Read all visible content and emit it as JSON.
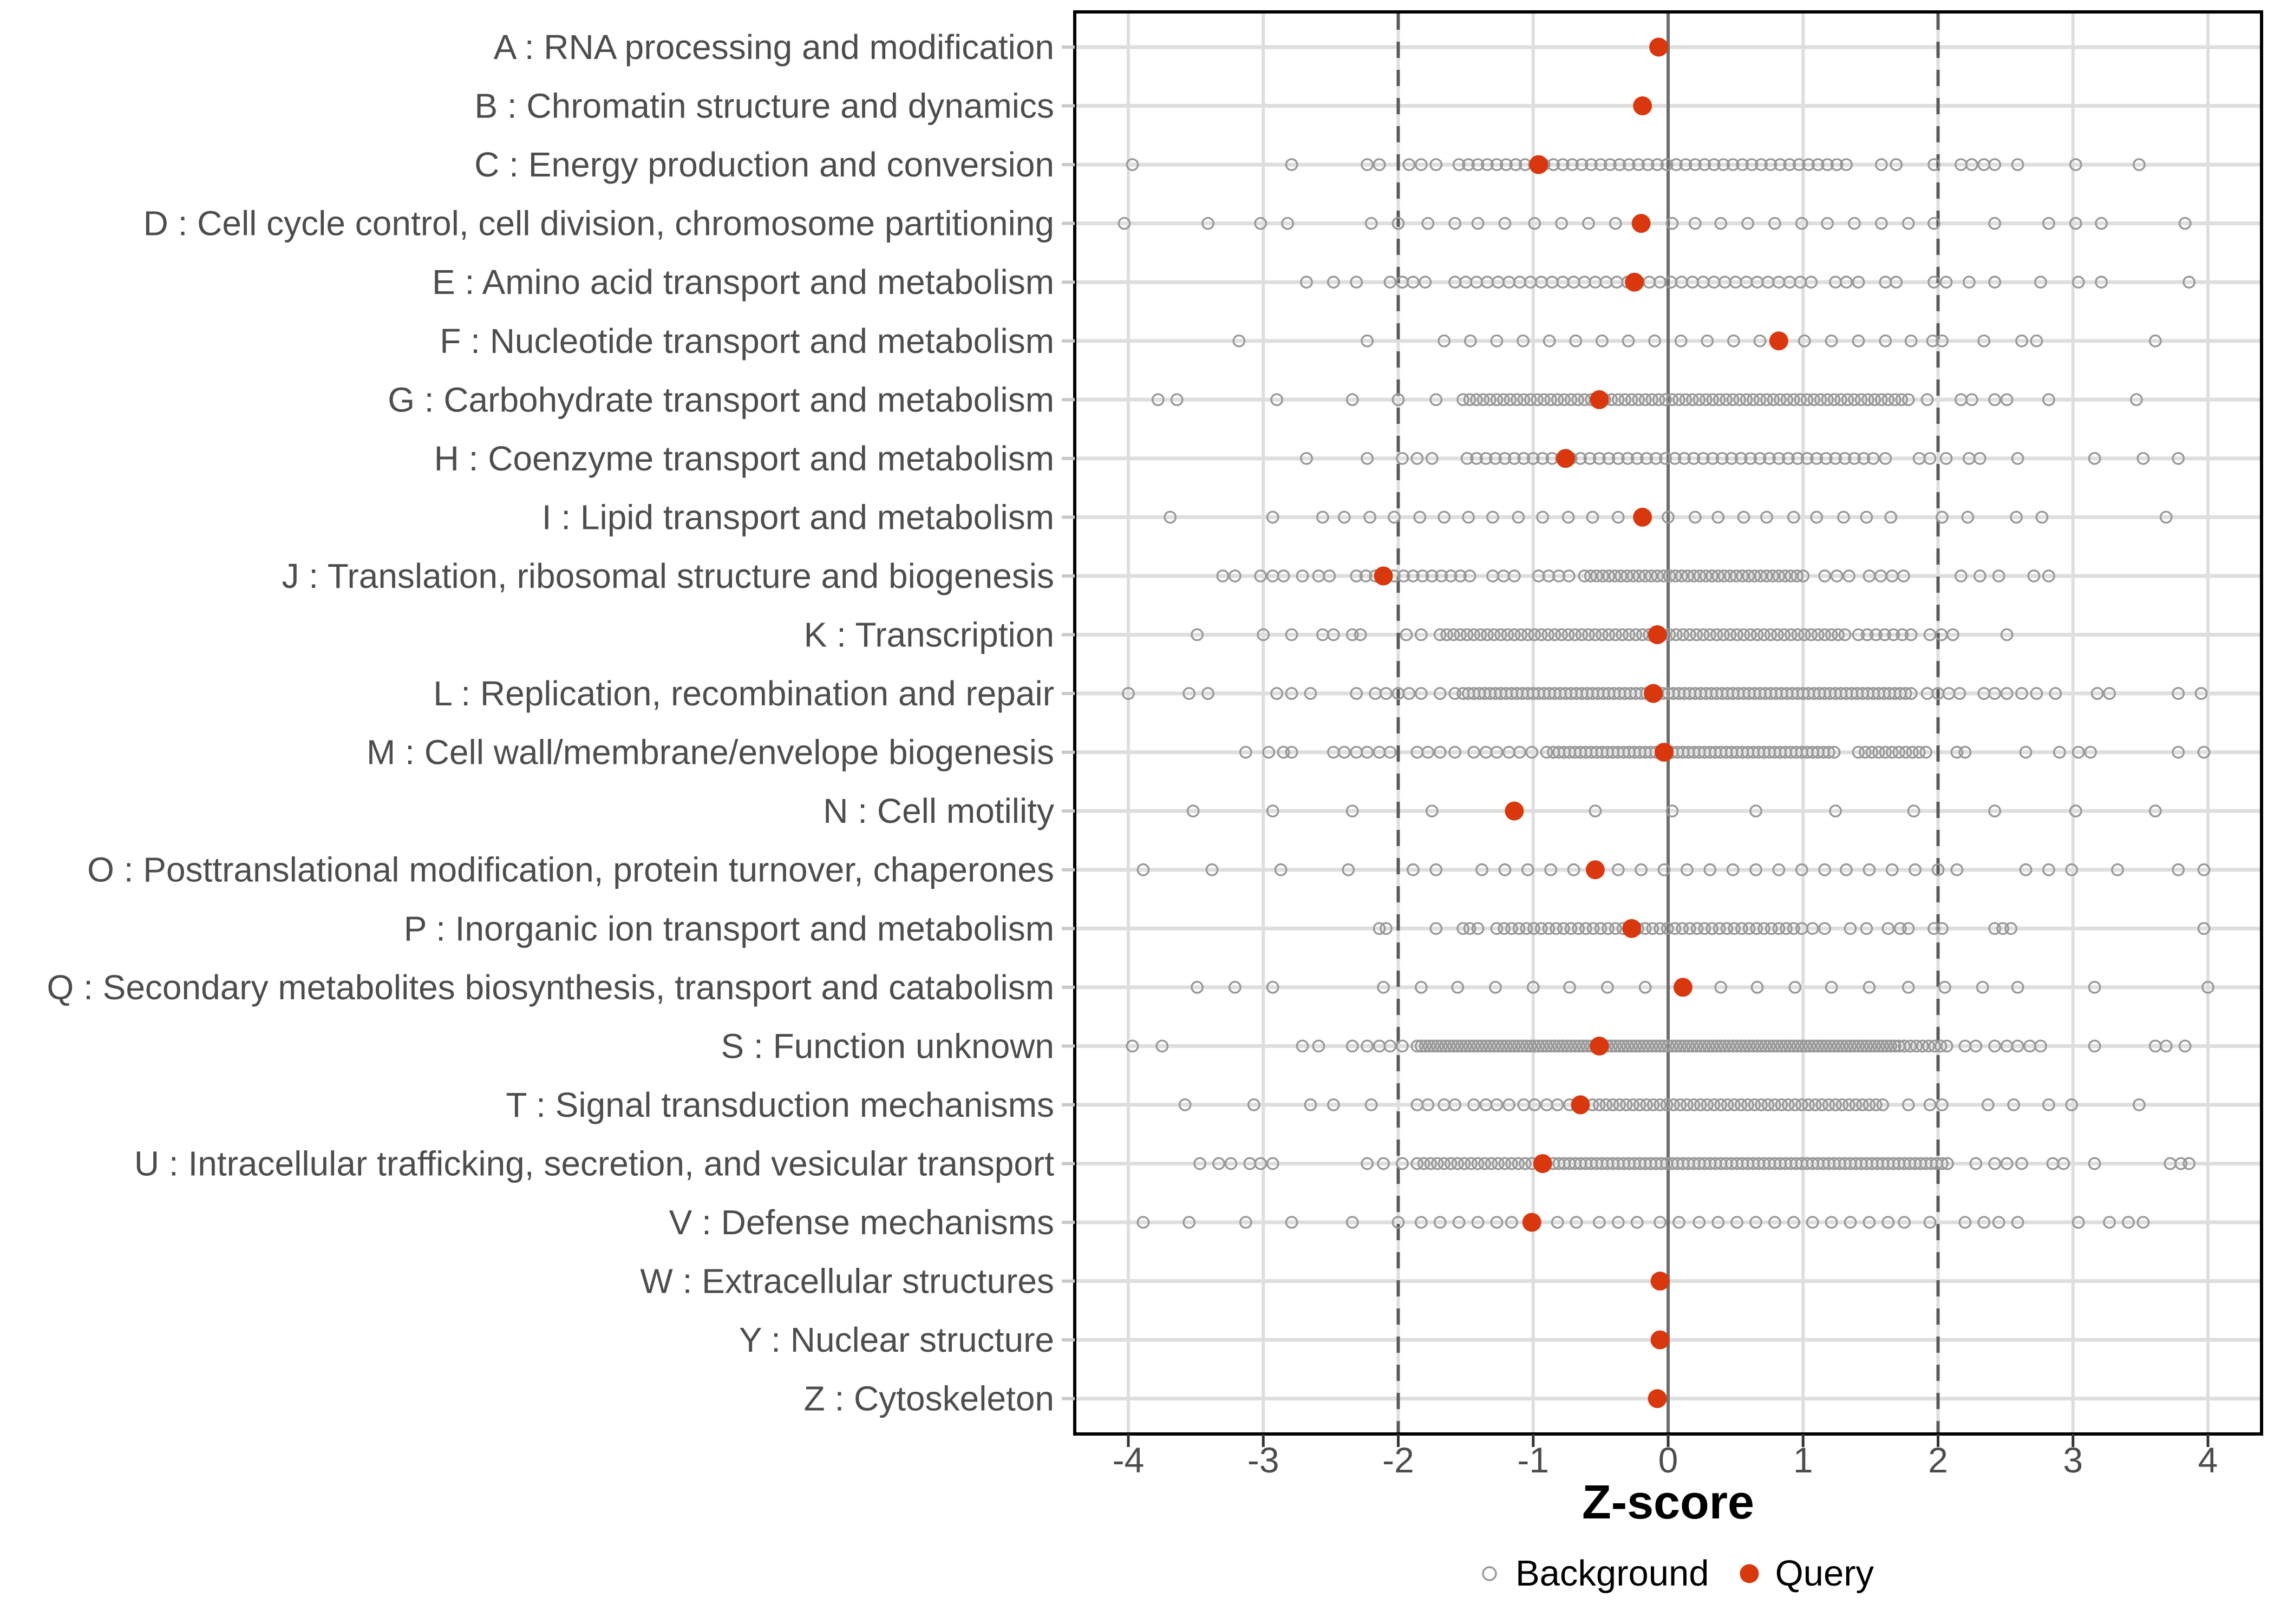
{
  "chart_data": {
    "type": "scatter",
    "variant": "strip-plot",
    "xlabel": "Z-score",
    "x_ticks": [
      "-4",
      "-3",
      "-2",
      "-1",
      "0",
      "1",
      "2",
      "3",
      "4"
    ],
    "x_tick_values": [
      -4,
      -3,
      -2,
      -1,
      0,
      1,
      2,
      3,
      4
    ],
    "x_range": [
      -4.4,
      4.4
    ],
    "grid": true,
    "reference_lines": {
      "solid_at": 0,
      "dashed_at": [
        -2,
        2
      ]
    },
    "legend_position": "bottom",
    "legend": [
      {
        "label": "Background",
        "symbol": "open-circle",
        "color": "#999999"
      },
      {
        "label": "Query",
        "symbol": "filled-circle",
        "color": "#D9380F"
      }
    ],
    "colors": {
      "query_fill": "#D9380F",
      "background_stroke": "#999999",
      "grid_line": "#DEDEDE",
      "reference_dashed": "#5A5A5A",
      "reference_solid": "#6E6E6E",
      "panel_border": "#000000",
      "axis_text": "#4D4D4D",
      "x_tick_mark": "#333333",
      "y_tick_mark": "#C9C9C9"
    },
    "categories": [
      {
        "label": "A : RNA processing and modification",
        "query": -0.07,
        "bg_points": [],
        "bg_bands": []
      },
      {
        "label": "B : Chromatin structure and dynamics",
        "query": -0.19,
        "bg_points": [],
        "bg_bands": []
      },
      {
        "label": "C : Energy production and conversion",
        "query": -0.96,
        "bg_points": [
          -3.97,
          -2.79,
          -2.23,
          -2.14,
          -1.92,
          -1.83,
          -1.72,
          1.58,
          1.69,
          1.97,
          2.17,
          2.25,
          2.34,
          2.42,
          2.59,
          3.02,
          3.49
        ],
        "bg_bands": [
          [
            -1.55,
            1.32,
            0.07
          ]
        ]
      },
      {
        "label": "D : Cell cycle control, cell division, chromosome partitioning",
        "query": -0.2,
        "bg_points": [
          -4.03,
          -3.41,
          -3.02,
          -2.82,
          -2.2,
          -2.0,
          -1.78,
          -1.58,
          -1.41,
          -1.21,
          -0.99,
          -0.79,
          -0.59,
          -0.39,
          0.03,
          0.2,
          0.39,
          0.59,
          0.79,
          0.99,
          1.18,
          1.38,
          1.58,
          1.78,
          1.97,
          2.42,
          2.82,
          3.02,
          3.21,
          3.83
        ],
        "bg_bands": []
      },
      {
        "label": "E : Amino acid transport and metabolism",
        "query": -0.25,
        "bg_points": [
          -2.68,
          -2.48,
          -2.31,
          -2.06,
          -1.97,
          -1.89,
          -1.8,
          1.24,
          1.32,
          1.41,
          1.61,
          1.69,
          1.97,
          2.06,
          2.23,
          2.42,
          2.76,
          3.04,
          3.21,
          3.86
        ],
        "bg_bands": [
          [
            -1.58,
            1.1,
            0.08
          ]
        ]
      },
      {
        "label": "F : Nucleotide transport and metabolism",
        "query": 0.82,
        "bg_points": [
          -3.18,
          -2.23,
          1.01,
          1.21,
          1.41,
          1.61,
          1.8,
          1.96,
          2.03,
          2.34,
          2.62,
          2.73,
          3.61
        ],
        "bg_bands": [
          [
            -1.66,
            0.7,
            0.195
          ]
        ]
      },
      {
        "label": "G : Carbohydrate transport and metabolism",
        "query": -0.51,
        "bg_points": [
          -3.78,
          -3.64,
          -2.9,
          -2.34,
          -2.0,
          -1.72,
          1.92,
          2.17,
          2.25,
          2.42,
          2.51,
          2.82,
          3.47
        ],
        "bg_bands": [
          [
            -1.52,
            1.78,
            0.05
          ]
        ]
      },
      {
        "label": "H : Coenzyme transport and metabolism",
        "query": -0.76,
        "bg_points": [
          -2.68,
          -2.23,
          -1.97,
          -1.86,
          -1.75,
          1.52,
          1.61,
          1.86,
          1.94,
          2.06,
          2.23,
          2.31,
          2.59,
          3.16,
          3.52,
          3.78
        ],
        "bg_bands": [
          [
            -1.49,
            1.47,
            0.07
          ]
        ]
      },
      {
        "label": "I : Lipid transport and metabolism",
        "query": -0.19,
        "bg_points": [
          -3.69,
          -2.93,
          -2.56,
          -2.4,
          -2.21,
          -2.03,
          -1.84,
          -1.66,
          -1.48,
          -1.3,
          -1.11,
          -0.93,
          -0.74,
          -0.56,
          -0.37,
          0.0,
          0.2,
          0.37,
          0.56,
          0.73,
          0.93,
          1.1,
          1.3,
          1.47,
          1.65,
          2.03,
          2.22,
          2.58,
          2.77,
          3.69
        ],
        "bg_bands": []
      },
      {
        "label": "J : Translation, ribosomal structure and biogenesis",
        "query": -2.11,
        "bg_points": [
          -3.3,
          -3.21,
          -3.02,
          -2.93,
          -2.85,
          -2.71,
          -2.59,
          -2.51,
          -2.31,
          -2.24,
          -2.17,
          2.17,
          2.31,
          2.45,
          2.71,
          2.82
        ],
        "bg_bands": [
          [
            -2.03,
            -1.41,
            0.07
          ],
          [
            -1.3,
            -1.13,
            0.08
          ],
          [
            -0.96,
            -0.73,
            0.075
          ],
          [
            -0.62,
            1.01,
            0.045
          ],
          [
            1.16,
            1.35,
            0.09
          ],
          [
            1.49,
            1.75,
            0.085
          ]
        ]
      },
      {
        "label": "K : Transcription",
        "query": -0.08,
        "bg_points": [
          -3.49,
          -3.0,
          -2.79,
          -2.56,
          -2.48,
          -2.34,
          -2.28,
          -1.94,
          -1.83,
          2.51
        ],
        "bg_bands": [
          [
            -1.69,
            1.35,
            0.05
          ],
          [
            1.41,
            1.86,
            0.065
          ],
          [
            1.94,
            2.11,
            0.085
          ]
        ]
      },
      {
        "label": "L : Replication, recombination and repair",
        "query": -0.11,
        "bg_points": [
          -4.0,
          -3.55,
          -3.41,
          -2.9,
          -2.79,
          -2.65,
          -2.31,
          -2.17,
          -2.09,
          -2.0,
          -1.92,
          -1.83,
          -1.69,
          -1.58,
          2.34,
          2.42,
          2.51,
          2.62,
          2.73,
          2.87,
          3.18,
          3.27,
          3.78,
          3.95
        ],
        "bg_bands": [
          [
            -1.52,
            1.8,
            0.04
          ],
          [
            1.92,
            2.17,
            0.08
          ]
        ]
      },
      {
        "label": "M : Cell wall/membrane/envelope biogenesis",
        "query": -0.03,
        "bg_points": [
          -3.13,
          -2.96,
          -2.85,
          -2.79,
          -2.48,
          -2.4,
          -2.31,
          -2.23,
          -2.14,
          -2.06,
          -1.86,
          -1.78,
          -1.69,
          -1.58,
          -1.44,
          -1.35,
          -1.27,
          -1.18,
          -1.1,
          -1.01,
          -0.9,
          2.14,
          2.2,
          2.65,
          2.9,
          3.04,
          3.13,
          3.78,
          3.97
        ],
        "bg_bands": [
          [
            -0.85,
            1.24,
            0.04
          ],
          [
            1.41,
            1.92,
            0.05
          ]
        ]
      },
      {
        "label": "N : Cell motility",
        "query": -1.14,
        "bg_points": [
          -3.52,
          -2.93,
          -2.34,
          -1.75,
          -0.54,
          0.03,
          0.65,
          1.24,
          1.82,
          2.42,
          3.02,
          3.61
        ],
        "bg_bands": []
      },
      {
        "label": "O : Posttranslational modification, protein turnover, chaperones",
        "query": -0.54,
        "bg_points": [
          -3.89,
          -3.38,
          -2.87,
          -2.37,
          -1.89,
          -1.72,
          -1.38,
          -1.21,
          -1.04,
          -0.87,
          -0.7,
          -0.37,
          -0.2,
          -0.03,
          0.14,
          0.31,
          0.48,
          0.65,
          0.82,
          0.99,
          1.16,
          1.32,
          1.49,
          1.66,
          1.83,
          2.0,
          2.14,
          2.65,
          2.82,
          2.99,
          3.33,
          3.78,
          3.97
        ],
        "bg_bands": []
      },
      {
        "label": "P : Inorganic ion transport and metabolism",
        "query": -0.27,
        "bg_points": [
          -2.14,
          -2.09,
          -1.72,
          -1.52,
          -1.47,
          -1.41,
          0.99,
          1.07,
          1.16,
          1.35,
          1.47,
          1.63,
          1.72,
          1.78,
          1.97,
          2.03,
          2.42,
          2.48,
          2.54,
          3.97
        ],
        "bg_bands": [
          [
            -1.27,
            0.93,
            0.055
          ]
        ]
      },
      {
        "label": "Q : Secondary metabolites biosynthesis, transport and catabolism",
        "query": 0.11,
        "bg_points": [
          -3.49,
          -3.21,
          -2.93,
          -2.11,
          -1.83,
          -1.56,
          -1.28,
          -1.0,
          -0.73,
          -0.45,
          -0.17,
          0.39,
          0.66,
          0.94,
          1.21,
          1.49,
          1.78,
          2.05,
          2.33,
          2.59,
          3.16,
          4.0
        ],
        "bg_bands": []
      },
      {
        "label": "S : Function unknown",
        "query": -0.51,
        "bg_points": [
          -3.97,
          -3.75,
          -2.71,
          -2.59,
          -2.34,
          -2.23,
          -2.14,
          -2.06,
          -1.97,
          -1.86,
          2.2,
          2.28,
          2.42,
          2.51,
          2.59,
          2.68,
          2.76,
          3.16,
          3.61,
          3.69,
          3.83
        ],
        "bg_bands": [
          [
            -1.83,
            1.72,
            0.03
          ],
          [
            1.75,
            2.09,
            0.045
          ]
        ]
      },
      {
        "label": "T : Signal transduction mechanisms",
        "query": -0.65,
        "bg_points": [
          -3.58,
          -3.07,
          -2.65,
          -2.48,
          -2.2,
          -1.86,
          -1.78,
          -1.66,
          -1.58,
          -1.44,
          -1.35,
          -1.27,
          -1.18,
          -1.07,
          -0.99,
          -0.9,
          -0.82,
          -0.73,
          1.78,
          1.94,
          2.03,
          2.37,
          2.56,
          2.82,
          2.99,
          3.49
        ],
        "bg_bands": [
          [
            -0.56,
            1.63,
            0.05
          ]
        ]
      },
      {
        "label": "U : Intracellular trafficking, secretion, and vesicular transport",
        "query": -0.93,
        "bg_points": [
          -3.47,
          -3.33,
          -3.24,
          -3.1,
          -3.02,
          -2.93,
          -2.23,
          -2.11,
          -1.97,
          2.28,
          2.42,
          2.51,
          2.62,
          2.85,
          2.93,
          3.16,
          3.72,
          3.8,
          3.86
        ],
        "bg_bands": [
          [
            -1.86,
            -1.01,
            0.05
          ],
          [
            -0.85,
            2.09,
            0.04
          ]
        ]
      },
      {
        "label": "V : Defense mechanisms",
        "query": -1.01,
        "bg_points": [
          -3.89,
          -3.55,
          -3.13,
          -2.79,
          -2.34,
          -2.0,
          -1.83,
          -1.69,
          -1.55,
          -1.41,
          -1.27,
          -1.16,
          -0.82,
          -0.68,
          -0.51,
          -0.37,
          -0.23,
          -0.06,
          0.08,
          0.23,
          0.37,
          0.51,
          0.65,
          0.79,
          0.93,
          1.07,
          1.21,
          1.35,
          1.49,
          1.63,
          1.75,
          1.94,
          2.2,
          2.34,
          2.45,
          2.59,
          3.04,
          3.27,
          3.41,
          3.52
        ],
        "bg_bands": []
      },
      {
        "label": "W : Extracellular structures",
        "query": -0.06,
        "bg_points": [],
        "bg_bands": []
      },
      {
        "label": "Y : Nuclear structure",
        "query": -0.06,
        "bg_points": [],
        "bg_bands": []
      },
      {
        "label": "Z : Cytoskeleton",
        "query": -0.08,
        "bg_points": [],
        "bg_bands": []
      }
    ]
  }
}
